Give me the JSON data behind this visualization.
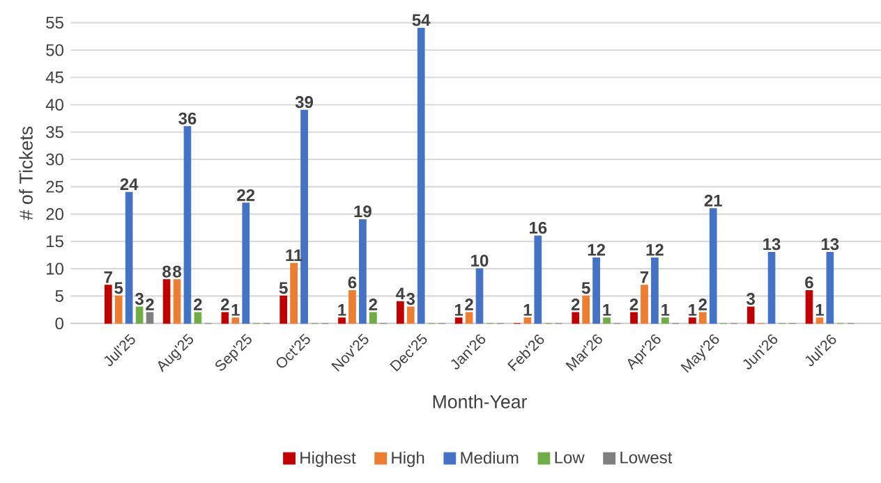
{
  "chart_data": {
    "type": "bar",
    "xlabel": "Month-Year",
    "ylabel": "# of Tickets",
    "categories": [
      "Jul'25",
      "Aug'25",
      "Sep'25",
      "Oct'25",
      "Nov'25",
      "Dec'25",
      "Jan'26",
      "Feb'26",
      "Mar'26",
      "Apr'26",
      "May'26",
      "Jun'26",
      "Jul'26"
    ],
    "series": [
      {
        "name": "Highest",
        "color": "#c00000",
        "values": [
          7,
          8,
          2,
          5,
          1,
          4,
          1,
          0,
          2,
          2,
          1,
          3,
          6
        ],
        "value_labels": [
          "7",
          "8",
          "2",
          "5",
          "1",
          "4",
          "1",
          null,
          "2",
          "2",
          "1",
          "3",
          "6"
        ]
      },
      {
        "name": "High",
        "color": "#ed7d31",
        "values": [
          5,
          8,
          1,
          11,
          6,
          3,
          2,
          1,
          5,
          7,
          2,
          0,
          1
        ],
        "value_labels": [
          "5",
          "8",
          "1",
          "11",
          "6",
          "3",
          "2",
          "1",
          "5",
          "7",
          "2",
          null,
          "1"
        ]
      },
      {
        "name": "Medium",
        "color": "#4472c4",
        "values": [
          24,
          36,
          22,
          39,
          19,
          54,
          10,
          16,
          12,
          12,
          21,
          13,
          13
        ],
        "value_labels": [
          "24",
          "36",
          "22",
          "39",
          "19",
          "54",
          "10",
          "16",
          "12",
          "12",
          "21",
          "13",
          "13"
        ]
      },
      {
        "name": "Low",
        "color": "#70ad47",
        "values": [
          3,
          2,
          0,
          0,
          2,
          0,
          0,
          0,
          1,
          1,
          0,
          0,
          0
        ],
        "value_labels": [
          "3",
          "2",
          null,
          null,
          "2",
          null,
          null,
          null,
          "1",
          "1",
          null,
          null,
          null
        ]
      },
      {
        "name": "Lowest",
        "color": "#7f7f7f",
        "values": [
          2,
          0,
          0,
          0,
          0,
          0,
          0,
          0,
          0,
          0,
          0,
          0,
          0
        ],
        "value_labels": [
          "2",
          null,
          null,
          null,
          null,
          null,
          null,
          null,
          null,
          null,
          null,
          null,
          null
        ]
      }
    ],
    "ylim": [
      0,
      55
    ],
    "yticks": [
      0,
      5,
      10,
      15,
      20,
      25,
      30,
      35,
      40,
      45,
      50,
      55
    ],
    "grid": "y",
    "legend": "bottom"
  }
}
